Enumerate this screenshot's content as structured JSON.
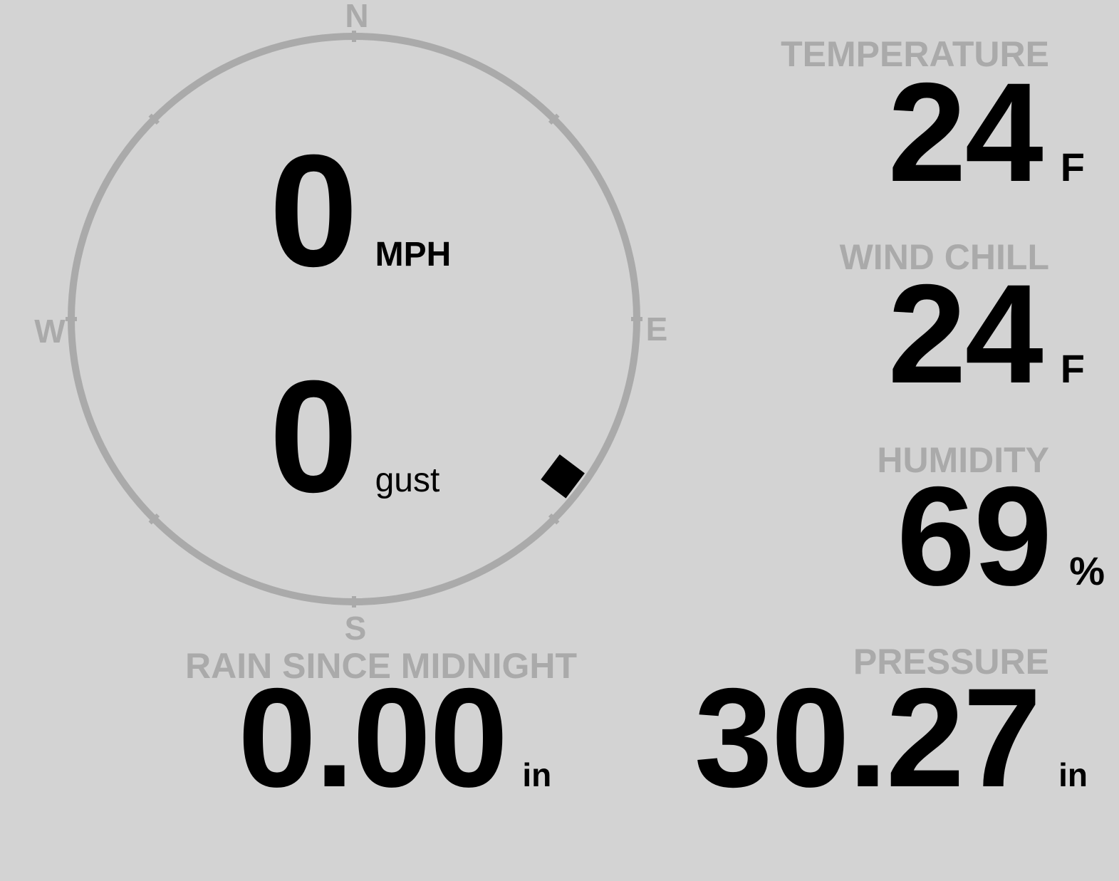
{
  "compass": {
    "north": "N",
    "east": "E",
    "south": "S",
    "west": "W",
    "wind_direction_deg": 127,
    "ring_color": "#aaaaaa",
    "needle_color": "#000000"
  },
  "wind": {
    "speed": "0",
    "speed_unit": "MPH",
    "gust": "0",
    "gust_unit": "gust"
  },
  "temperature": {
    "label": "TEMPERATURE",
    "value": "24",
    "unit": "F"
  },
  "wind_chill": {
    "label": "WIND CHILL",
    "value": "24",
    "unit": "F"
  },
  "humidity": {
    "label": "HUMIDITY",
    "value": "69",
    "unit": "%"
  },
  "rain": {
    "label": "RAIN SINCE MIDNIGHT",
    "value": "0.00",
    "unit": "in"
  },
  "pressure": {
    "label": "PRESSURE",
    "value": "30.27",
    "unit": "in"
  },
  "colors": {
    "background": "#d3d3d3",
    "label": "#aaaaaa",
    "value": "#000000"
  }
}
